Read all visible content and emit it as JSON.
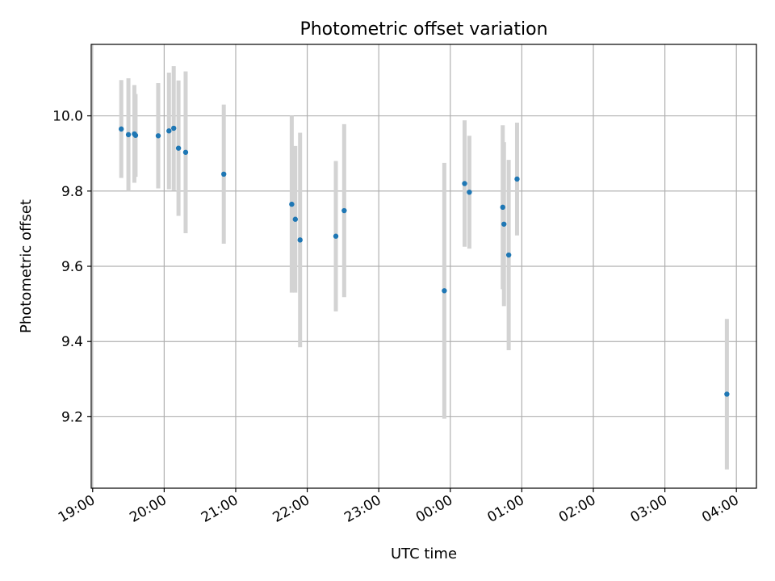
{
  "chart_data": {
    "type": "scatter",
    "title": "Photometric offset variation",
    "xlabel": "UTC time",
    "ylabel": "Photometric offset",
    "x_tick_labels": [
      "19:00",
      "20:00",
      "21:00",
      "22:00",
      "23:00",
      "00:00",
      "01:00",
      "02:00",
      "03:00",
      "04:00"
    ],
    "y_tick_labels": [
      "9.2",
      "9.4",
      "9.6",
      "9.8",
      "10.0"
    ],
    "y_ticks": [
      9.2,
      9.4,
      9.6,
      9.8,
      10.0
    ],
    "xlim_hours_from_1900": [
      -0.02,
      9.28
    ],
    "ylim": [
      9.01,
      10.19
    ],
    "grid": true,
    "marker_color": "#1f77b4",
    "errorbar_color": "#d3d3d3",
    "series": [
      {
        "points": [
          {
            "t": "19:24",
            "y": 9.965,
            "err": 0.13
          },
          {
            "t": "19:30",
            "y": 9.95,
            "err": 0.15
          },
          {
            "t": "19:35",
            "y": 9.952,
            "err": 0.13
          },
          {
            "t": "19:36",
            "y": 9.948,
            "err": 0.11
          },
          {
            "t": "19:55",
            "y": 9.947,
            "err": 0.14
          },
          {
            "t": "20:04",
            "y": 9.96,
            "err": 0.155
          },
          {
            "t": "20:08",
            "y": 9.967,
            "err": 0.165
          },
          {
            "t": "20:12",
            "y": 9.914,
            "err": 0.18
          },
          {
            "t": "20:18",
            "y": 9.903,
            "err": 0.215
          },
          {
            "t": "20:50",
            "y": 9.845,
            "err": 0.185
          },
          {
            "t": "21:47",
            "y": 9.765,
            "err": 0.235
          },
          {
            "t": "21:50",
            "y": 9.725,
            "err": 0.195
          },
          {
            "t": "21:54",
            "y": 9.67,
            "err": 0.285
          },
          {
            "t": "22:24",
            "y": 9.68,
            "err": 0.2
          },
          {
            "t": "22:31",
            "y": 9.748,
            "err": 0.23
          },
          {
            "t": "23:55",
            "y": 9.535,
            "err": 0.34
          },
          {
            "t": "00:12",
            "y": 9.82,
            "err": 0.168
          },
          {
            "t": "00:16",
            "y": 9.797,
            "err": 0.15
          },
          {
            "t": "00:44",
            "y": 9.757,
            "err": 0.218
          },
          {
            "t": "00:45",
            "y": 9.712,
            "err": 0.218
          },
          {
            "t": "00:49",
            "y": 9.63,
            "err": 0.253
          },
          {
            "t": "00:56",
            "y": 9.832,
            "err": 0.15
          },
          {
            "t": "03:52",
            "y": 9.26,
            "err": 0.2
          }
        ]
      }
    ]
  }
}
